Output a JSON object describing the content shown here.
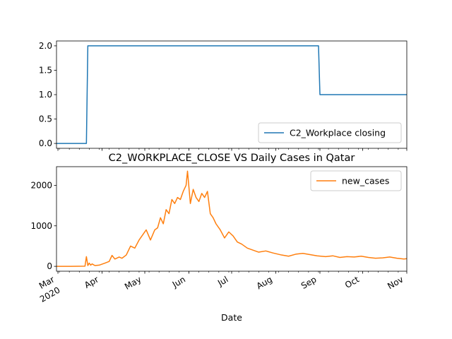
{
  "chart_data": [
    {
      "type": "line",
      "title": "",
      "xlabel": "",
      "ylabel": "",
      "ylim": [
        -0.1,
        2.1
      ],
      "yticks": [
        "0.0",
        "0.5",
        "1.0",
        "1.5",
        "2.0"
      ],
      "ytick_values": [
        0.0,
        0.5,
        1.0,
        1.5,
        2.0
      ],
      "xlim": [
        "2020-02-29",
        "2020-11-01"
      ],
      "legend": "lower-right",
      "series": [
        {
          "name": "C2_Workplace closing",
          "color": "#1f77b4",
          "x": [
            "2020-02-29",
            "2020-03-21",
            "2020-03-22",
            "2020-08-31",
            "2020-09-01",
            "2020-11-01"
          ],
          "values": [
            0,
            0,
            2,
            2,
            1,
            1
          ]
        }
      ]
    },
    {
      "type": "line",
      "title": "C2_WORKPLACE_CLOSE VS Daily Cases in Qatar",
      "xlabel": "Date",
      "ylabel": "",
      "ylim": [
        -120,
        2460
      ],
      "yticks": [
        "0",
        "1000",
        "2000"
      ],
      "ytick_values": [
        0,
        1000,
        2000
      ],
      "xlim": [
        "2020-02-29",
        "2020-11-01"
      ],
      "xticks": [
        {
          "date": "2020-03-01",
          "label": "Mar",
          "sublabel": "2020"
        },
        {
          "date": "2020-04-01",
          "label": "Apr"
        },
        {
          "date": "2020-05-01",
          "label": "May"
        },
        {
          "date": "2020-06-01",
          "label": "Jun"
        },
        {
          "date": "2020-07-01",
          "label": "Jul"
        },
        {
          "date": "2020-08-01",
          "label": "Aug"
        },
        {
          "date": "2020-09-01",
          "label": "Sep"
        },
        {
          "date": "2020-10-01",
          "label": "Oct"
        },
        {
          "date": "2020-11-01",
          "label": "Nov"
        }
      ],
      "legend": "upper-right",
      "series": [
        {
          "name": "new_cases",
          "color": "#ff7f0e",
          "x": [
            "2020-02-29",
            "2020-03-10",
            "2020-03-15",
            "2020-03-20",
            "2020-03-21",
            "2020-03-22",
            "2020-03-23",
            "2020-03-24",
            "2020-03-25",
            "2020-03-27",
            "2020-03-30",
            "2020-04-03",
            "2020-04-06",
            "2020-04-08",
            "2020-04-10",
            "2020-04-13",
            "2020-04-15",
            "2020-04-18",
            "2020-04-21",
            "2020-04-24",
            "2020-04-27",
            "2020-04-30",
            "2020-05-02",
            "2020-05-05",
            "2020-05-08",
            "2020-05-10",
            "2020-05-12",
            "2020-05-14",
            "2020-05-16",
            "2020-05-18",
            "2020-05-20",
            "2020-05-22",
            "2020-05-24",
            "2020-05-26",
            "2020-05-28",
            "2020-05-30",
            "2020-05-31",
            "2020-06-02",
            "2020-06-04",
            "2020-06-06",
            "2020-06-08",
            "2020-06-10",
            "2020-06-12",
            "2020-06-14",
            "2020-06-16",
            "2020-06-18",
            "2020-06-20",
            "2020-06-23",
            "2020-06-26",
            "2020-06-29",
            "2020-07-02",
            "2020-07-05",
            "2020-07-08",
            "2020-07-12",
            "2020-07-16",
            "2020-07-20",
            "2020-07-25",
            "2020-07-30",
            "2020-08-05",
            "2020-08-10",
            "2020-08-15",
            "2020-08-20",
            "2020-08-25",
            "2020-08-30",
            "2020-09-05",
            "2020-09-10",
            "2020-09-15",
            "2020-09-20",
            "2020-09-25",
            "2020-09-30",
            "2020-10-05",
            "2020-10-10",
            "2020-10-15",
            "2020-10-20",
            "2020-10-25",
            "2020-10-30",
            "2020-11-01"
          ],
          "values": [
            0,
            0,
            2,
            5,
            240,
            20,
            80,
            30,
            60,
            20,
            30,
            80,
            120,
            270,
            180,
            230,
            200,
            280,
            500,
            450,
            650,
            800,
            900,
            650,
            900,
            950,
            1200,
            1050,
            1400,
            1300,
            1650,
            1550,
            1700,
            1650,
            1850,
            2000,
            2350,
            1550,
            1900,
            1700,
            1600,
            1800,
            1700,
            1850,
            1300,
            1200,
            1050,
            900,
            700,
            850,
            750,
            600,
            550,
            450,
            400,
            350,
            380,
            330,
            280,
            250,
            300,
            320,
            290,
            260,
            240,
            260,
            220,
            240,
            230,
            250,
            220,
            200,
            210,
            230,
            200,
            180,
            190
          ]
        }
      ]
    }
  ]
}
